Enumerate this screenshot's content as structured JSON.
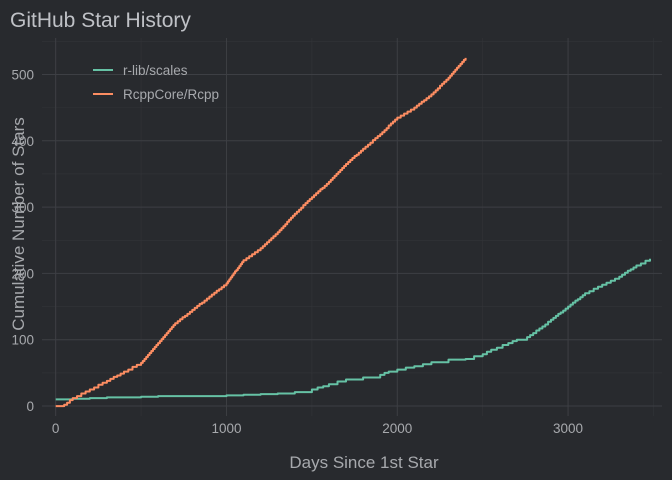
{
  "chart_data": {
    "type": "line",
    "title": "GitHub Star History",
    "xlabel": "Days Since 1st Star",
    "ylabel": "Cumulative Number of Stars",
    "xlim": [
      -80,
      3550
    ],
    "ylim": [
      -15,
      555
    ],
    "x_ticks": [
      0,
      1000,
      2000,
      3000
    ],
    "y_ticks": [
      0,
      100,
      200,
      300,
      400,
      500
    ],
    "grid": true,
    "legend_position": "top-left",
    "series": [
      {
        "name": "r-lib/scales",
        "color": "#66c2a5",
        "points": [
          [
            0,
            10
          ],
          [
            100,
            11
          ],
          [
            200,
            12
          ],
          [
            300,
            13
          ],
          [
            400,
            13
          ],
          [
            500,
            14
          ],
          [
            600,
            15
          ],
          [
            800,
            15
          ],
          [
            1000,
            16
          ],
          [
            1100,
            17
          ],
          [
            1200,
            18
          ],
          [
            1300,
            19
          ],
          [
            1400,
            21
          ],
          [
            1500,
            25
          ],
          [
            1600,
            33
          ],
          [
            1700,
            40
          ],
          [
            1800,
            43
          ],
          [
            1900,
            47
          ],
          [
            1950,
            52
          ],
          [
            2000,
            55
          ],
          [
            2100,
            60
          ],
          [
            2200,
            66
          ],
          [
            2300,
            70
          ],
          [
            2400,
            71
          ],
          [
            2500,
            78
          ],
          [
            2550,
            85
          ],
          [
            2650,
            95
          ],
          [
            2700,
            100
          ],
          [
            2760,
            104
          ],
          [
            2850,
            120
          ],
          [
            2900,
            130
          ],
          [
            3000,
            150
          ],
          [
            3100,
            170
          ],
          [
            3200,
            183
          ],
          [
            3300,
            195
          ],
          [
            3400,
            212
          ],
          [
            3480,
            222
          ]
        ]
      },
      {
        "name": "RcppCore/Rcpp",
        "color": "#fc8d62",
        "points": [
          [
            0,
            0
          ],
          [
            50,
            2
          ],
          [
            100,
            12
          ],
          [
            200,
            25
          ],
          [
            300,
            38
          ],
          [
            400,
            52
          ],
          [
            500,
            65
          ],
          [
            600,
            95
          ],
          [
            700,
            125
          ],
          [
            800,
            145
          ],
          [
            900,
            165
          ],
          [
            1000,
            185
          ],
          [
            1100,
            220
          ],
          [
            1200,
            238
          ],
          [
            1300,
            262
          ],
          [
            1400,
            290
          ],
          [
            1500,
            315
          ],
          [
            1600,
            338
          ],
          [
            1700,
            365
          ],
          [
            1800,
            388
          ],
          [
            1900,
            410
          ],
          [
            2000,
            435
          ],
          [
            2100,
            450
          ],
          [
            2200,
            470
          ],
          [
            2300,
            495
          ],
          [
            2350,
            510
          ],
          [
            2400,
            525
          ]
        ]
      }
    ]
  }
}
